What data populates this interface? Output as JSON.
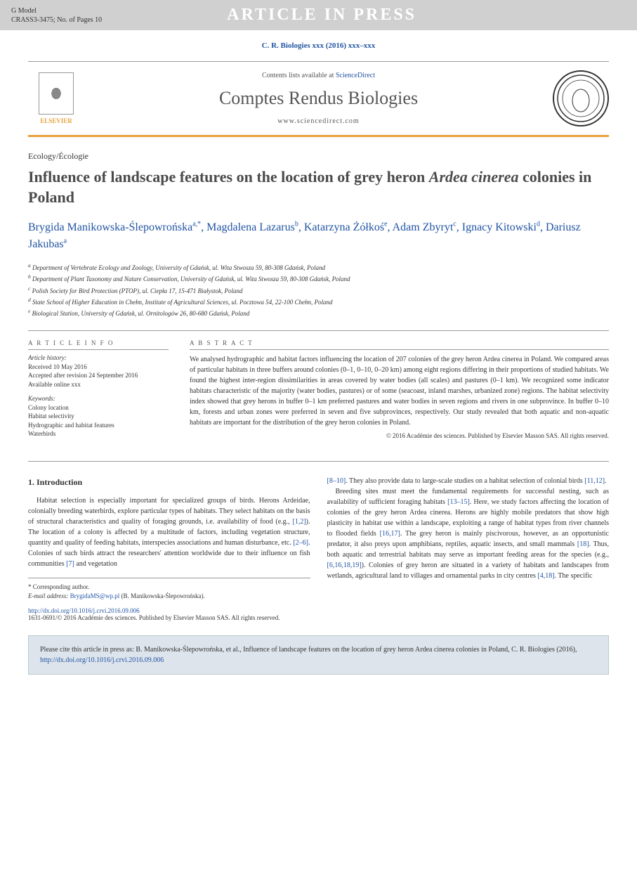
{
  "press_header": {
    "gmodel_line1": "G Model",
    "gmodel_line2": "CRASS3-3475; No. of Pages 10",
    "title": "ARTICLE IN PRESS"
  },
  "citation_top": "C. R. Biologies xxx (2016) xxx–xxx",
  "banner": {
    "elsevier": "ELSEVIER",
    "contents_prefix": "Contents lists available at ",
    "contents_link": "ScienceDirect",
    "journal_name": "Comptes Rendus Biologies",
    "url": "www.sciencedirect.com"
  },
  "article": {
    "category": "Ecology/Écologie",
    "title_part1": "Influence of landscape features on the location of grey heron ",
    "title_italic": "Ardea cinerea",
    "title_part2": " colonies in Poland",
    "authors": [
      {
        "name": "Brygida Manikowska-Ślepowrońska",
        "sup": "a,*"
      },
      {
        "name": "Magdalena Lazarus",
        "sup": "b"
      },
      {
        "name": "Katarzyna Żółkoś",
        "sup": "e"
      },
      {
        "name": "Adam Zbyryt",
        "sup": "c"
      },
      {
        "name": "Ignacy Kitowski",
        "sup": "d"
      },
      {
        "name": "Dariusz Jakubas",
        "sup": "a"
      }
    ],
    "affiliations": [
      {
        "sup": "a",
        "text": "Department of Vertebrate Ecology and Zoology, University of Gdańsk, ul. Wita Stwosza 59, 80-308 Gdańsk, Poland"
      },
      {
        "sup": "b",
        "text": "Department of Plant Taxonomy and Nature Conservation, University of Gdańsk, ul. Wita Stwosza 59, 80-308 Gdańsk, Poland"
      },
      {
        "sup": "c",
        "text": "Polish Society for Bird Protection (PTOP), ul. Ciepła 17, 15-471 Białystok, Poland"
      },
      {
        "sup": "d",
        "text": "State School of Higher Education in Chełm, Institute of Agricultural Sciences, ul. Pocztowa 54, 22-100 Chełm, Poland"
      },
      {
        "sup": "e",
        "text": "Biological Station, University of Gdańsk, ul. Ornitologów 26, 80-680 Gdańsk, Poland"
      }
    ]
  },
  "info": {
    "header": "A R T I C L E   I N F O",
    "history_label": "Article history:",
    "history_lines": [
      "Received 10 May 2016",
      "Accepted after revision 24 September 2016",
      "Available online xxx"
    ],
    "keywords_label": "Keywords:",
    "keywords": [
      "Colony location",
      "Habitat selectivity",
      "Hydrographic and habitat features",
      "Waterbirds"
    ]
  },
  "abstract": {
    "header": "A B S T R A C T",
    "text": "We analysed hydrographic and habitat factors influencing the location of 207 colonies of the grey heron Ardea cinerea in Poland. We compared areas of particular habitats in three buffers around colonies (0–1, 0–10, 0–20 km) among eight regions differing in their proportions of studied habitats. We found the highest inter-region dissimilarities in areas covered by water bodies (all scales) and pastures (0–1 km). We recognized some indicator habitats characteristic of the majority (water bodies, pastures) or of some (seacoast, inland marshes, urbanized zone) regions. The habitat selectivity index showed that grey herons in buffer 0–1 km preferred pastures and water bodies in seven regions and rivers in one subprovince. In buffer 0–10 km, forests and urban zones were preferred in seven and five subprovinces, respectively. Our study revealed that both aquatic and non-aquatic habitats are important for the distribution of the grey heron colonies in Poland.",
    "copyright": "© 2016 Académie des sciences. Published by Elsevier Masson SAS. All rights reserved."
  },
  "body": {
    "section_heading": "1. Introduction",
    "col1_p1_before": "Habitat selection is especially important for specialized groups of birds. Herons Ardeidae, colonially breeding waterbirds, explore particular types of habitats. They select habitats on the basis of structural characteristics and quality of foraging grounds, i.e. availability of food (e.g., ",
    "col1_ref1": "[1,2]",
    "col1_p1_mid1": "). The location of a colony is affected by a multitude of factors, including vegetation structure, quantity and quality of feeding habitats, interspecies associations and human disturbance, etc. ",
    "col1_ref2": "[2–6]",
    "col1_p1_mid2": ". Colonies of such birds attract the researchers' attention worldwide due to their influence on fish communities ",
    "col1_ref3": "[7]",
    "col1_p1_after": " and vegetation",
    "col2_ref1": "[8–10]",
    "col2_p1_mid": ". They also provide data to large-scale studies on a habitat selection of colonial birds ",
    "col2_ref2": "[11,12]",
    "col2_p1_end": ".",
    "col2_p2_start": "Breeding sites must meet the fundamental requirements for successful nesting, such as availability of sufficient foraging habitats ",
    "col2_ref3": "[13–15]",
    "col2_p2_mid1": ". Here, we study factors affecting the location of colonies of the grey heron Ardea cinerea. Herons are highly mobile predators that show high plasticity in habitat use within a landscape, exploiting a range of habitat types from river channels to flooded fields ",
    "col2_ref4": "[16,17]",
    "col2_p2_mid2": ". The grey heron is mainly piscivorous, however, as an opportunistic predator, it also preys upon amphibians, reptiles, aquatic insects, and small mammals ",
    "col2_ref5": "[18]",
    "col2_p2_mid3": ". Thus, both aquatic and terrestrial habitats may serve as important feeding areas for the species (e.g., ",
    "col2_ref6": "[6,16,18,19]",
    "col2_p2_mid4": "). Colonies of grey heron are situated in a variety of habitats and landscapes from wetlands, agricultural land to villages and ornamental parks in city centres ",
    "col2_ref7": "[4,18]",
    "col2_p2_end": ". The specific"
  },
  "corr": {
    "label": "* Corresponding author.",
    "email_label": "E-mail address: ",
    "email": "BrygidaMS@wp.pl",
    "name": " (B. Manikowska-Ślepowrońska)."
  },
  "doi": "http://dx.doi.org/10.1016/j.crvi.2016.09.006",
  "footer_copyright": "1631-0691/© 2016 Académie des sciences. Published by Elsevier Masson SAS. All rights reserved.",
  "cite_box": {
    "prefix": "Please cite this article in press as: B. Manikowska-Ślepowrońska, et al., Influence of landscape features on the location of grey heron Ardea cinerea colonies in Poland, C. R. Biologies (2016), ",
    "link": "http://dx.doi.org/10.1016/j.crvi.2016.09.006"
  },
  "colors": {
    "link": "#2154a3",
    "accent": "#e8a23d",
    "header_bg": "#d0d0d0",
    "cite_bg": "#dde4ec"
  }
}
